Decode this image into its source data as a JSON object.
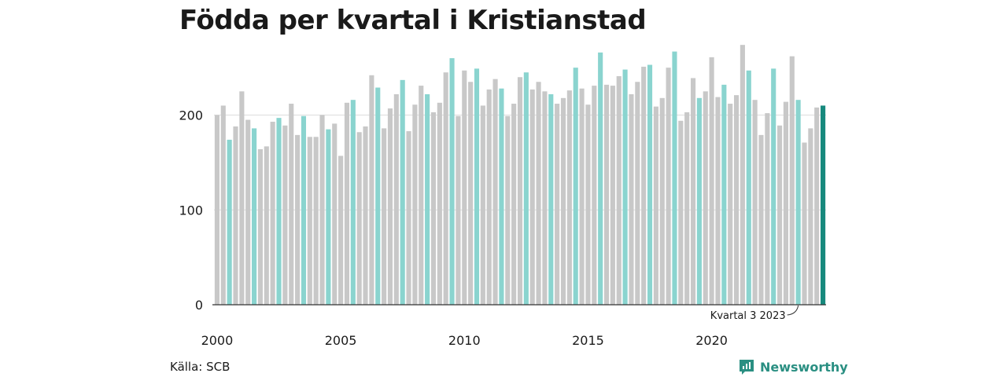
{
  "page": {
    "title": "Födda per kvartal i Kristianstad"
  },
  "source": "Källa: SCB",
  "brand": {
    "name": "Newsworthy",
    "icon": "newsworthy-logo-icon"
  },
  "colors": {
    "other": "#c8c8c8",
    "same_quarter": "#8ad4cf",
    "latest": "#17897d",
    "axis": "#333333",
    "grid": "#dddddd"
  },
  "chart_data": {
    "type": "bar",
    "title": "Födda per kvartal i Kristianstad",
    "xlabel": "",
    "ylabel": "",
    "ylim": [
      0,
      270
    ],
    "yticks": [
      0,
      100,
      200
    ],
    "xticks": [
      "2000",
      "2005",
      "2010",
      "2015",
      "2020"
    ],
    "grid": true,
    "highlight_quarter": 3,
    "annotation": "Kvartal 3 2023",
    "series": [
      {
        "values": [
          {
            "year": 2000,
            "q": 1,
            "v": 200
          },
          {
            "year": 2000,
            "q": 2,
            "v": 210
          },
          {
            "year": 2000,
            "q": 3,
            "v": 174
          },
          {
            "year": 2000,
            "q": 4,
            "v": 188
          },
          {
            "year": 2001,
            "q": 1,
            "v": 225
          },
          {
            "year": 2001,
            "q": 2,
            "v": 195
          },
          {
            "year": 2001,
            "q": 3,
            "v": 186
          },
          {
            "year": 2001,
            "q": 4,
            "v": 164
          },
          {
            "year": 2002,
            "q": 1,
            "v": 167
          },
          {
            "year": 2002,
            "q": 2,
            "v": 193
          },
          {
            "year": 2002,
            "q": 3,
            "v": 197
          },
          {
            "year": 2002,
            "q": 4,
            "v": 189
          },
          {
            "year": 2003,
            "q": 1,
            "v": 212
          },
          {
            "year": 2003,
            "q": 2,
            "v": 179
          },
          {
            "year": 2003,
            "q": 3,
            "v": 199
          },
          {
            "year": 2003,
            "q": 4,
            "v": 177
          },
          {
            "year": 2004,
            "q": 1,
            "v": 177
          },
          {
            "year": 2004,
            "q": 2,
            "v": 200
          },
          {
            "year": 2004,
            "q": 3,
            "v": 185
          },
          {
            "year": 2004,
            "q": 4,
            "v": 191
          },
          {
            "year": 2005,
            "q": 1,
            "v": 157
          },
          {
            "year": 2005,
            "q": 2,
            "v": 213
          },
          {
            "year": 2005,
            "q": 3,
            "v": 216
          },
          {
            "year": 2005,
            "q": 4,
            "v": 182
          },
          {
            "year": 2006,
            "q": 1,
            "v": 188
          },
          {
            "year": 2006,
            "q": 2,
            "v": 242
          },
          {
            "year": 2006,
            "q": 3,
            "v": 229
          },
          {
            "year": 2006,
            "q": 4,
            "v": 186
          },
          {
            "year": 2007,
            "q": 1,
            "v": 207
          },
          {
            "year": 2007,
            "q": 2,
            "v": 222
          },
          {
            "year": 2007,
            "q": 3,
            "v": 237
          },
          {
            "year": 2007,
            "q": 4,
            "v": 183
          },
          {
            "year": 2008,
            "q": 1,
            "v": 211
          },
          {
            "year": 2008,
            "q": 2,
            "v": 231
          },
          {
            "year": 2008,
            "q": 3,
            "v": 222
          },
          {
            "year": 2008,
            "q": 4,
            "v": 203
          },
          {
            "year": 2009,
            "q": 1,
            "v": 213
          },
          {
            "year": 2009,
            "q": 2,
            "v": 245
          },
          {
            "year": 2009,
            "q": 3,
            "v": 260
          },
          {
            "year": 2009,
            "q": 4,
            "v": 199
          },
          {
            "year": 2010,
            "q": 1,
            "v": 247
          },
          {
            "year": 2010,
            "q": 2,
            "v": 235
          },
          {
            "year": 2010,
            "q": 3,
            "v": 249
          },
          {
            "year": 2010,
            "q": 4,
            "v": 210
          },
          {
            "year": 2011,
            "q": 1,
            "v": 227
          },
          {
            "year": 2011,
            "q": 2,
            "v": 238
          },
          {
            "year": 2011,
            "q": 3,
            "v": 228
          },
          {
            "year": 2011,
            "q": 4,
            "v": 199
          },
          {
            "year": 2012,
            "q": 1,
            "v": 212
          },
          {
            "year": 2012,
            "q": 2,
            "v": 240
          },
          {
            "year": 2012,
            "q": 3,
            "v": 245
          },
          {
            "year": 2012,
            "q": 4,
            "v": 227
          },
          {
            "year": 2013,
            "q": 1,
            "v": 235
          },
          {
            "year": 2013,
            "q": 2,
            "v": 225
          },
          {
            "year": 2013,
            "q": 3,
            "v": 222
          },
          {
            "year": 2013,
            "q": 4,
            "v": 212
          },
          {
            "year": 2014,
            "q": 1,
            "v": 218
          },
          {
            "year": 2014,
            "q": 2,
            "v": 226
          },
          {
            "year": 2014,
            "q": 3,
            "v": 250
          },
          {
            "year": 2014,
            "q": 4,
            "v": 228
          },
          {
            "year": 2015,
            "q": 1,
            "v": 211
          },
          {
            "year": 2015,
            "q": 2,
            "v": 231
          },
          {
            "year": 2015,
            "q": 3,
            "v": 266
          },
          {
            "year": 2015,
            "q": 4,
            "v": 232
          },
          {
            "year": 2016,
            "q": 1,
            "v": 231
          },
          {
            "year": 2016,
            "q": 2,
            "v": 241
          },
          {
            "year": 2016,
            "q": 3,
            "v": 248
          },
          {
            "year": 2016,
            "q": 4,
            "v": 222
          },
          {
            "year": 2017,
            "q": 1,
            "v": 235
          },
          {
            "year": 2017,
            "q": 2,
            "v": 251
          },
          {
            "year": 2017,
            "q": 3,
            "v": 253
          },
          {
            "year": 2017,
            "q": 4,
            "v": 209
          },
          {
            "year": 2018,
            "q": 1,
            "v": 218
          },
          {
            "year": 2018,
            "q": 2,
            "v": 250
          },
          {
            "year": 2018,
            "q": 3,
            "v": 267
          },
          {
            "year": 2018,
            "q": 4,
            "v": 194
          },
          {
            "year": 2019,
            "q": 1,
            "v": 203
          },
          {
            "year": 2019,
            "q": 2,
            "v": 239
          },
          {
            "year": 2019,
            "q": 3,
            "v": 218
          },
          {
            "year": 2019,
            "q": 4,
            "v": 225
          },
          {
            "year": 2020,
            "q": 1,
            "v": 261
          },
          {
            "year": 2020,
            "q": 2,
            "v": 219
          },
          {
            "year": 2020,
            "q": 3,
            "v": 232
          },
          {
            "year": 2020,
            "q": 4,
            "v": 212
          },
          {
            "year": 2021,
            "q": 1,
            "v": 221
          },
          {
            "year": 2021,
            "q": 2,
            "v": 274
          },
          {
            "year": 2021,
            "q": 3,
            "v": 247
          },
          {
            "year": 2021,
            "q": 4,
            "v": 216
          },
          {
            "year": 2022,
            "q": 1,
            "v": 179
          },
          {
            "year": 2022,
            "q": 2,
            "v": 202
          },
          {
            "year": 2022,
            "q": 3,
            "v": 249
          },
          {
            "year": 2022,
            "q": 4,
            "v": 189
          },
          {
            "year": 2023,
            "q": 1,
            "v": 214
          },
          {
            "year": 2023,
            "q": 2,
            "v": 262
          },
          {
            "year": 2023,
            "q": 3,
            "v": 216
          },
          {
            "year": 2023,
            "q": 4,
            "v": 171
          },
          {
            "year": 2024,
            "q": 1,
            "v": 186
          },
          {
            "year": 2024,
            "q": 2,
            "v": 208
          },
          {
            "year": 2024,
            "q": 3,
            "v": 210
          }
        ]
      }
    ]
  }
}
